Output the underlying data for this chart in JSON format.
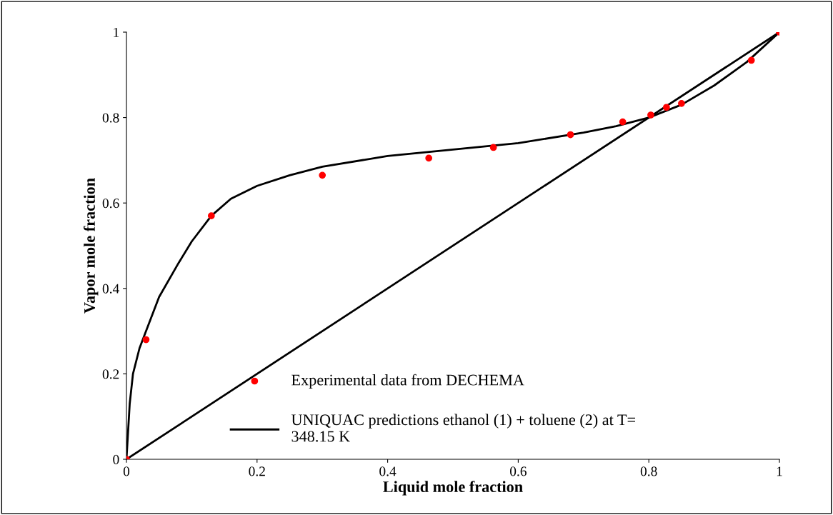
{
  "chart_data": {
    "type": "line",
    "xlabel": "Liquid mole fraction",
    "ylabel": "Vapor mole fraction",
    "xlim": [
      0,
      1
    ],
    "ylim": [
      0,
      1
    ],
    "xticks": [
      0,
      0.2,
      0.4,
      0.6,
      0.8,
      1
    ],
    "yticks": [
      0,
      0.2,
      0.4,
      0.6,
      0.8,
      1
    ],
    "grid": false,
    "legend": "bottom",
    "series": [
      {
        "type": "scatter",
        "name": "Experimental data from DECHEMA",
        "color": "#ff0000",
        "marker": "circle",
        "x": [
          0,
          0.03,
          0.13,
          0.3,
          0.463,
          0.562,
          0.68,
          0.76,
          0.803,
          0.827,
          0.85,
          0.957,
          1
        ],
        "values": [
          0,
          0.28,
          0.57,
          0.665,
          0.705,
          0.73,
          0.76,
          0.79,
          0.806,
          0.824,
          0.833,
          0.934,
          1
        ]
      },
      {
        "name": "UNIQUAC predictions ethanol (1) + toluene (2) at T=\n348.15 K",
        "color": "#000000",
        "line_style": "solid",
        "x": [
          0,
          0.005,
          0.01,
          0.02,
          0.03,
          0.05,
          0.08,
          0.1,
          0.13,
          0.16,
          0.2,
          0.25,
          0.3,
          0.4,
          0.5,
          0.6,
          0.7,
          0.75,
          0.8,
          0.85,
          0.9,
          0.95,
          1
        ],
        "values": [
          0,
          0.13,
          0.2,
          0.26,
          0.3,
          0.38,
          0.46,
          0.51,
          0.57,
          0.61,
          0.64,
          0.665,
          0.685,
          0.71,
          0.725,
          0.74,
          0.765,
          0.78,
          0.8,
          0.83,
          0.875,
          0.93,
          1
        ]
      },
      {
        "color": "#000000",
        "line_style": "solid",
        "x": [
          0,
          1
        ],
        "values": [
          0,
          1
        ]
      }
    ]
  }
}
